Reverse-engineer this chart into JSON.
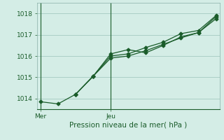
{
  "xlabel": "Pression niveau de la mer( hPa )",
  "background_color": "#d4ede6",
  "grid_color": "#aacfc7",
  "line_color": "#1a5c2a",
  "spine_color": "#8ab0a8",
  "ylim": [
    1013.5,
    1018.5
  ],
  "yticks": [
    1014,
    1015,
    1016,
    1017,
    1018
  ],
  "vline_positions": [
    0.135,
    0.445
  ],
  "x_day_names": [
    "Mer",
    "Jeu"
  ],
  "series1_x": [
    0,
    1,
    2,
    3,
    4,
    5,
    6,
    7,
    8,
    9,
    10
  ],
  "series1_y": [
    1013.85,
    1013.75,
    1014.2,
    1015.05,
    1016.1,
    1016.3,
    1016.15,
    1016.5,
    1016.9,
    1017.1,
    1017.75
  ],
  "series2_x": [
    2,
    3,
    4,
    5,
    6,
    7,
    8,
    9,
    10
  ],
  "series2_y": [
    1014.2,
    1015.05,
    1016.0,
    1016.1,
    1016.4,
    1016.65,
    1017.05,
    1017.2,
    1017.9
  ],
  "series3_x": [
    2,
    3,
    4,
    5,
    6,
    7,
    8,
    9,
    10
  ],
  "series3_y": [
    1014.2,
    1015.05,
    1015.9,
    1016.0,
    1016.25,
    1016.55,
    1016.85,
    1017.1,
    1017.85
  ],
  "xlim": [
    -0.2,
    10.2
  ]
}
